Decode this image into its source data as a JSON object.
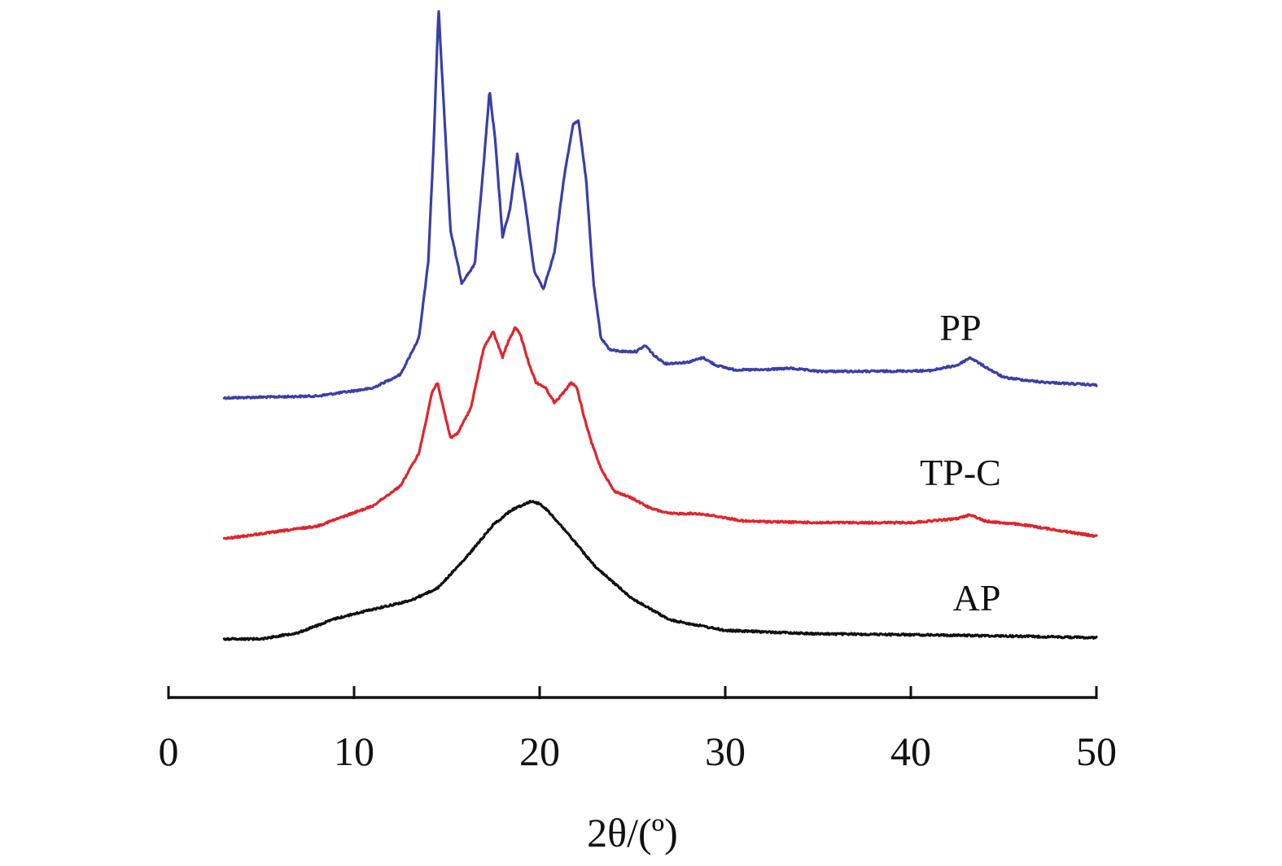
{
  "chart_data": {
    "type": "line",
    "title": "",
    "xlabel": "2θ/(º)",
    "ylabel": "",
    "xlim": [
      0,
      50
    ],
    "x_ticks": [
      "0",
      "10",
      "20",
      "30",
      "40",
      "50"
    ],
    "y_axis_visible": false,
    "grid": false,
    "legend": "none",
    "series": [
      {
        "name": "PP",
        "color": "#3a3fa8",
        "x": [
          3,
          8,
          11,
          12.5,
          13.5,
          14,
          14.3,
          14.55,
          14.8,
          15.2,
          15.8,
          16.5,
          17,
          17.3,
          17.6,
          18,
          18.4,
          18.8,
          19.2,
          19.7,
          20.2,
          20.8,
          21.3,
          21.8,
          22.1,
          22.5,
          22.9,
          23.3,
          23.8,
          24.5,
          25.2,
          25.7,
          26.2,
          26.8,
          28,
          28.8,
          29.5,
          30.5,
          32,
          33.5,
          35,
          38,
          41,
          42.5,
          43.2,
          44,
          45,
          47,
          50
        ],
        "values": [
          0.3,
          0.9,
          3.5,
          8,
          20,
          45,
          85,
          128,
          100,
          55,
          38,
          44,
          78,
          101,
          85,
          53,
          62,
          80,
          65,
          42,
          36,
          48,
          72,
          90,
          91,
          72,
          38,
          20,
          16,
          15.5,
          15.5,
          17.5,
          14,
          11.5,
          12,
          13.5,
          11,
          9.5,
          9.5,
          10,
          9,
          9,
          9.2,
          11,
          13.5,
          10.5,
          7,
          5.5,
          4.5
        ],
        "offset_label": "PP"
      },
      {
        "name": "TP-C",
        "color": "#e0242c",
        "x": [
          3,
          8,
          11,
          12.5,
          13.5,
          14.2,
          14.5,
          14.8,
          15.2,
          15.6,
          16.3,
          17,
          17.5,
          18,
          18.3,
          18.7,
          19,
          19.4,
          19.8,
          20.3,
          20.8,
          21.3,
          21.7,
          22,
          22.4,
          22.8,
          23.3,
          24,
          25,
          26,
          27,
          28.5,
          29.5,
          31,
          35,
          40,
          42.5,
          43.2,
          44,
          46,
          50
        ],
        "values": [
          0,
          2.5,
          6.5,
          10.5,
          17,
          29,
          31,
          26,
          20,
          21,
          26,
          38,
          41,
          36,
          39,
          42,
          40,
          35,
          31,
          30,
          27,
          29,
          31,
          30,
          24,
          19,
          14,
          9.5,
          8,
          6,
          5,
          5,
          4.5,
          3.5,
          3.2,
          3.2,
          4,
          4.8,
          3.5,
          2.8,
          0.5
        ],
        "offset_label": "TP-C"
      },
      {
        "name": "AP",
        "color": "#101010",
        "x": [
          3,
          5,
          7,
          9,
          11,
          13,
          14.5,
          16,
          17.5,
          18.5,
          19.5,
          20,
          20.5,
          21.5,
          23,
          25,
          27,
          30,
          35,
          40,
          45,
          50
        ],
        "values": [
          0,
          0,
          1.5,
          4.8,
          7,
          9,
          12,
          19,
          27,
          30.5,
          32.5,
          32,
          30,
          25,
          17,
          9.5,
          4.5,
          2,
          1.2,
          1,
          0.7,
          0.3
        ]
      }
    ],
    "series_labels": [
      "PP",
      "TP-C",
      "AP"
    ]
  }
}
